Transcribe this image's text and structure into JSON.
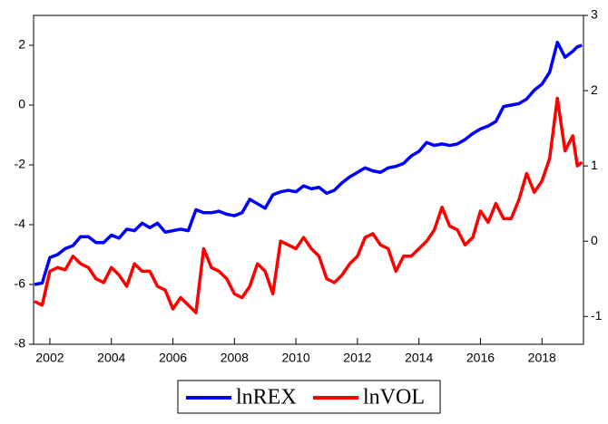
{
  "chart_data": {
    "type": "line",
    "x": [
      2001.5,
      2001.75,
      2002.0,
      2002.25,
      2002.5,
      2002.75,
      2003.0,
      2003.25,
      2003.5,
      2003.75,
      2004.0,
      2004.25,
      2004.5,
      2004.75,
      2005.0,
      2005.25,
      2005.5,
      2005.75,
      2006.0,
      2006.25,
      2006.5,
      2006.75,
      2007.0,
      2007.25,
      2007.5,
      2007.75,
      2008.0,
      2008.25,
      2008.5,
      2008.75,
      2009.0,
      2009.25,
      2009.5,
      2009.75,
      2010.0,
      2010.25,
      2010.5,
      2010.75,
      2011.0,
      2011.25,
      2011.5,
      2011.75,
      2012.0,
      2012.25,
      2012.5,
      2012.75,
      2013.0,
      2013.25,
      2013.5,
      2013.75,
      2014.0,
      2014.25,
      2014.5,
      2014.75,
      2015.0,
      2015.25,
      2015.5,
      2015.75,
      2016.0,
      2016.25,
      2016.5,
      2016.75,
      2017.0,
      2017.25,
      2017.5,
      2017.75,
      2018.0,
      2018.25,
      2018.5,
      2018.75,
      2019.0,
      2019.15,
      2019.3
    ],
    "series": [
      {
        "name": "lnREX",
        "color": "#0000ff",
        "axis": "y",
        "values": [
          -6.0,
          -5.95,
          -5.1,
          -5.0,
          -4.8,
          -4.7,
          -4.4,
          -4.4,
          -4.6,
          -4.6,
          -4.35,
          -4.45,
          -4.15,
          -4.2,
          -3.95,
          -4.1,
          -3.95,
          -4.25,
          -4.2,
          -4.15,
          -4.2,
          -3.5,
          -3.6,
          -3.6,
          -3.55,
          -3.65,
          -3.7,
          -3.6,
          -3.15,
          -3.3,
          -3.45,
          -3.0,
          -2.9,
          -2.85,
          -2.9,
          -2.7,
          -2.8,
          -2.75,
          -2.95,
          -2.85,
          -2.6,
          -2.4,
          -2.25,
          -2.1,
          -2.2,
          -2.25,
          -2.1,
          -2.05,
          -1.95,
          -1.7,
          -1.55,
          -1.25,
          -1.35,
          -1.3,
          -1.35,
          -1.3,
          -1.15,
          -0.95,
          -0.8,
          -0.7,
          -0.55,
          -0.05,
          0.0,
          0.05,
          0.2,
          0.5,
          0.7,
          1.1,
          2.1,
          1.6,
          1.8,
          1.95,
          2.0
        ]
      },
      {
        "name": "lnVOL",
        "color": "#ff0000",
        "axis": "y2",
        "values": [
          -0.8,
          -0.85,
          -0.4,
          -0.35,
          -0.38,
          -0.2,
          -0.3,
          -0.35,
          -0.5,
          -0.55,
          -0.35,
          -0.45,
          -0.6,
          -0.3,
          -0.4,
          -0.4,
          -0.6,
          -0.65,
          -0.9,
          -0.75,
          -0.85,
          -0.95,
          -0.1,
          -0.35,
          -0.4,
          -0.5,
          -0.7,
          -0.75,
          -0.6,
          -0.3,
          -0.4,
          -0.7,
          0.0,
          -0.05,
          -0.1,
          0.05,
          -0.1,
          -0.2,
          -0.5,
          -0.55,
          -0.45,
          -0.3,
          -0.2,
          0.05,
          0.1,
          -0.05,
          -0.1,
          -0.4,
          -0.2,
          -0.2,
          -0.1,
          0.0,
          0.15,
          0.45,
          0.2,
          0.15,
          -0.05,
          0.05,
          0.4,
          0.25,
          0.5,
          0.3,
          0.3,
          0.55,
          0.9,
          0.65,
          0.8,
          1.1,
          1.9,
          1.2,
          1.4,
          1.0,
          1.05
        ]
      }
    ],
    "xlim": [
      2001.47,
      2019.35
    ],
    "xticks": [
      2002,
      2004,
      2006,
      2008,
      2010,
      2012,
      2014,
      2016,
      2018
    ],
    "ylim": [
      -8,
      3
    ],
    "yticks": [
      -8,
      -6,
      -4,
      -2,
      0,
      2
    ],
    "y2lim": [
      -1.37,
      3
    ],
    "y2ticks": [
      -1,
      0,
      1,
      2,
      3
    ]
  }
}
